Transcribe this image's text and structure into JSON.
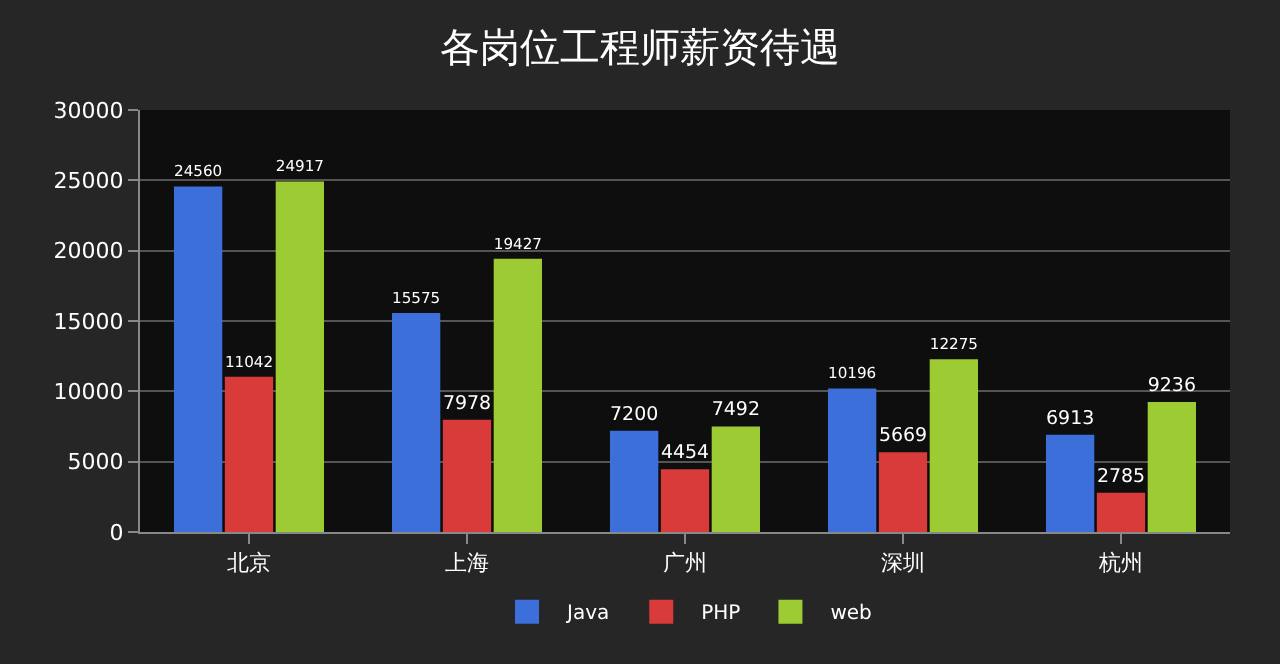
{
  "chart_data": {
    "type": "bar",
    "title": "各岗位工程师薪资待遇",
    "categories": [
      "北京",
      "上海",
      "广州",
      "深圳",
      "杭州"
    ],
    "series": [
      {
        "name": "Java",
        "color": "#3c6fd9",
        "values": [
          24560,
          15575,
          7200,
          10196,
          6913
        ]
      },
      {
        "name": "PHP",
        "color": "#d93b3b",
        "values": [
          11042,
          7978,
          4454,
          5669,
          2785
        ]
      },
      {
        "name": "web",
        "color": "#9ccb34",
        "values": [
          24917,
          19427,
          7492,
          12275,
          9236
        ]
      }
    ],
    "ylim": [
      0,
      30000
    ],
    "yticks": [
      0,
      5000,
      10000,
      15000,
      20000,
      25000,
      30000
    ],
    "grid": "y",
    "legend": "bottom",
    "data_labels": true
  }
}
